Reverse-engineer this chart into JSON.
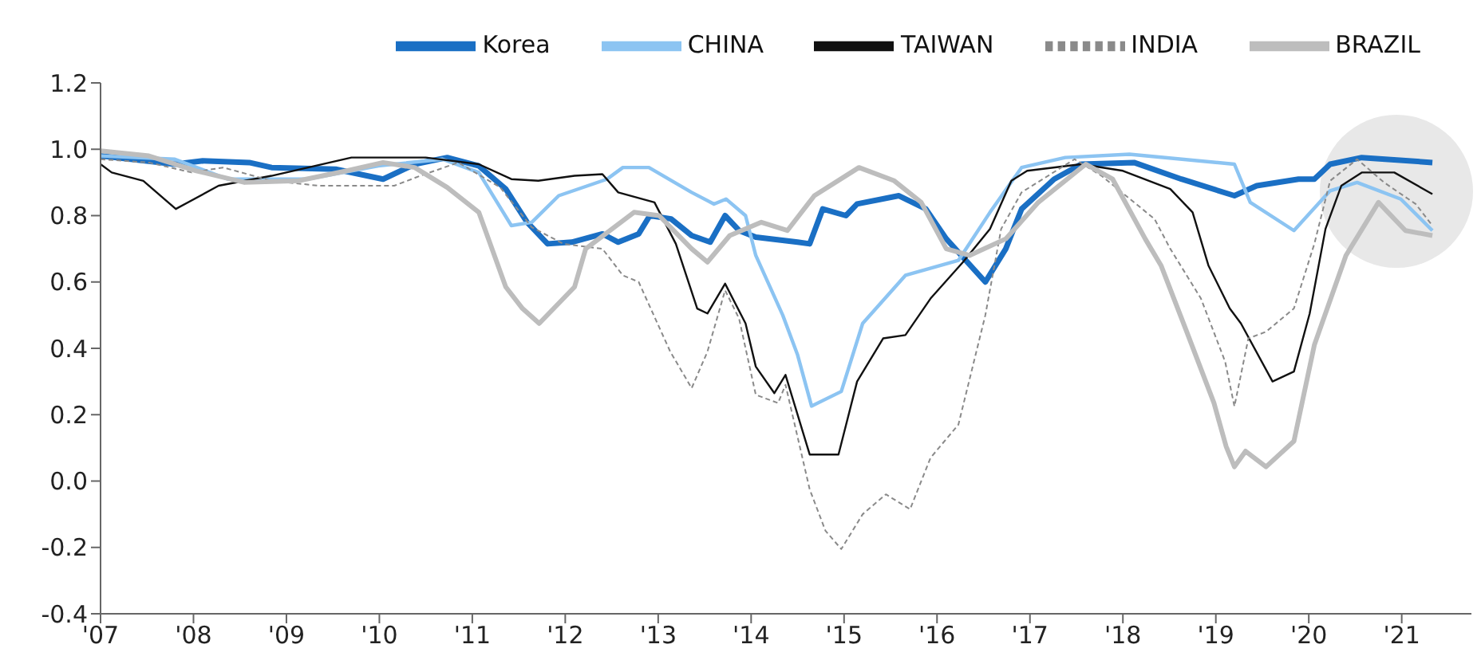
{
  "chart_data": {
    "type": "line",
    "legend": "top",
    "xlim": [
      2007,
      2021.75
    ],
    "xticks": [
      {
        "value": 2007,
        "label": "'07"
      },
      {
        "value": 2008,
        "label": "'08"
      },
      {
        "value": 2009,
        "label": "'09"
      },
      {
        "value": 2010,
        "label": "'10"
      },
      {
        "value": 2011,
        "label": "'11"
      },
      {
        "value": 2012,
        "label": "'12"
      },
      {
        "value": 2013,
        "label": "'13"
      },
      {
        "value": 2014,
        "label": "'14"
      },
      {
        "value": 2015,
        "label": "'15"
      },
      {
        "value": 2016,
        "label": "'16"
      },
      {
        "value": 2017,
        "label": "'17"
      },
      {
        "value": 2018,
        "label": "'18"
      },
      {
        "value": 2019,
        "label": "'19"
      },
      {
        "value": 2020,
        "label": "'20"
      },
      {
        "value": 2021,
        "label": "'21"
      }
    ],
    "ylim": [
      -0.4,
      1.2
    ],
    "yticks": [
      {
        "value": -0.4,
        "label": "-0.4"
      },
      {
        "value": -0.2,
        "label": "-0.2"
      },
      {
        "value": 0,
        "label": "0.0"
      },
      {
        "value": 0.2,
        "label": "0.2"
      },
      {
        "value": 0.4,
        "label": "0.4"
      },
      {
        "value": 0.6,
        "label": "0.6"
      },
      {
        "value": 0.8,
        "label": "0.8"
      },
      {
        "value": 1,
        "label": "1.0"
      },
      {
        "value": 1.2,
        "label": "1.2"
      }
    ],
    "series": [
      {
        "name": "Korea",
        "color": "#1a6fc4",
        "x": [
          2007,
          2007.8,
          2008.1,
          2008.6,
          2008.84,
          2009.53,
          2010.04,
          2010.38,
          2010.73,
          2011.07,
          2011.36,
          2011.59,
          2011.81,
          2012.07,
          2012.4,
          2012.57,
          2012.79,
          2012.91,
          2013.14,
          2013.36,
          2013.56,
          2013.72,
          2013.87,
          2014.05,
          2014.5,
          2014.63,
          2014.77,
          2015.02,
          2015.14,
          2015.59,
          2015.88,
          2016.1,
          2016.52,
          2016.74,
          2016.91,
          2017.26,
          2017.55,
          2018.12,
          2018.63,
          2019.2,
          2019.44,
          2019.89,
          2020.06,
          2020.23,
          2020.57,
          2021.33
        ],
        "values": [
          0.98,
          0.955,
          0.965,
          0.96,
          0.945,
          0.94,
          0.91,
          0.955,
          0.975,
          0.95,
          0.88,
          0.78,
          0.715,
          0.72,
          0.745,
          0.72,
          0.745,
          0.8,
          0.79,
          0.74,
          0.72,
          0.8,
          0.755,
          0.735,
          0.72,
          0.715,
          0.82,
          0.8,
          0.835,
          0.86,
          0.82,
          0.73,
          0.6,
          0.7,
          0.82,
          0.91,
          0.955,
          0.96,
          0.91,
          0.86,
          0.89,
          0.91,
          0.91,
          0.955,
          0.975,
          0.96
        ]
      },
      {
        "name": "CHINA",
        "color": "#8cc4f2",
        "x": [
          2007,
          2007.8,
          2008.37,
          2009.23,
          2009.99,
          2010.68,
          2011.07,
          2011.42,
          2011.64,
          2011.93,
          2012.45,
          2012.62,
          2012.9,
          2013.36,
          2013.6,
          2013.73,
          2013.94,
          2014.05,
          2014.34,
          2014.5,
          2014.65,
          2014.97,
          2015.2,
          2015.66,
          2016.23,
          2016.57,
          2016.91,
          2017.38,
          2018.07,
          2019.2,
          2019.37,
          2019.84,
          2020.23,
          2020.52,
          2020.99,
          2021.33
        ],
        "values": [
          0.98,
          0.97,
          0.91,
          0.91,
          0.95,
          0.97,
          0.93,
          0.77,
          0.78,
          0.86,
          0.91,
          0.945,
          0.945,
          0.87,
          0.835,
          0.85,
          0.8,
          0.68,
          0.5,
          0.38,
          0.226,
          0.27,
          0.475,
          0.62,
          0.665,
          0.81,
          0.945,
          0.975,
          0.985,
          0.955,
          0.84,
          0.755,
          0.875,
          0.9,
          0.85,
          0.755
        ]
      },
      {
        "name": "TAIWAN",
        "color": "#111111",
        "x": [
          2007,
          2007.12,
          2007.46,
          2007.81,
          2008.27,
          2008.84,
          2009.7,
          2010.5,
          2011.07,
          2011.42,
          2011.71,
          2012.1,
          2012.4,
          2012.57,
          2012.96,
          2013.19,
          2013.42,
          2013.53,
          2013.72,
          2013.94,
          2014.05,
          2014.25,
          2014.37,
          2014.63,
          2014.94,
          2015.14,
          2015.42,
          2015.66,
          2015.93,
          2016.28,
          2016.57,
          2016.8,
          2016.97,
          2017.55,
          2018.0,
          2018.51,
          2018.75,
          2018.92,
          2019.15,
          2019.27,
          2019.61,
          2019.84,
          2020.01,
          2020.18,
          2020.35,
          2020.57,
          2020.92,
          2021.33
        ],
        "values": [
          0.955,
          0.93,
          0.905,
          0.82,
          0.89,
          0.92,
          0.975,
          0.975,
          0.955,
          0.91,
          0.905,
          0.92,
          0.925,
          0.87,
          0.84,
          0.715,
          0.52,
          0.505,
          0.595,
          0.475,
          0.345,
          0.265,
          0.32,
          0.08,
          0.08,
          0.3,
          0.43,
          0.44,
          0.55,
          0.66,
          0.76,
          0.905,
          0.935,
          0.955,
          0.935,
          0.88,
          0.81,
          0.65,
          0.52,
          0.475,
          0.3,
          0.33,
          0.505,
          0.76,
          0.89,
          0.93,
          0.93,
          0.865
        ]
      },
      {
        "name": "INDIA",
        "color": "#8a8a8a",
        "line_style": "dashed",
        "x": [
          2007,
          2007.52,
          2007.98,
          2008.32,
          2008.84,
          2009.35,
          2010.16,
          2010.44,
          2010.85,
          2011.3,
          2011.64,
          2011.98,
          2012.4,
          2012.62,
          2012.79,
          2013.13,
          2013.36,
          2013.53,
          2013.72,
          2013.87,
          2014.05,
          2014.29,
          2014.37,
          2014.63,
          2014.8,
          2014.97,
          2015.2,
          2015.45,
          2015.71,
          2015.93,
          2016.23,
          2016.52,
          2016.69,
          2016.91,
          2017.48,
          2017.77,
          2018.34,
          2018.51,
          2018.84,
          2019.1,
          2019.2,
          2019.35,
          2019.54,
          2019.84,
          2020.06,
          2020.23,
          2020.52,
          2020.81,
          2021.15,
          2021.33
        ],
        "values": [
          0.97,
          0.96,
          0.93,
          0.945,
          0.905,
          0.89,
          0.89,
          0.92,
          0.96,
          0.885,
          0.765,
          0.715,
          0.7,
          0.62,
          0.6,
          0.39,
          0.28,
          0.39,
          0.575,
          0.49,
          0.26,
          0.235,
          0.29,
          -0.025,
          -0.15,
          -0.205,
          -0.1,
          -0.04,
          -0.085,
          0.07,
          0.17,
          0.5,
          0.76,
          0.87,
          0.97,
          0.92,
          0.79,
          0.7,
          0.55,
          0.36,
          0.225,
          0.43,
          0.45,
          0.52,
          0.715,
          0.905,
          0.97,
          0.9,
          0.835,
          0.77
        ]
      },
      {
        "name": "BRAZIL",
        "color": "#bdbdbd",
        "x": [
          2007,
          2007.52,
          2008.03,
          2008.55,
          2009.13,
          2009.65,
          2010.04,
          2010.38,
          2010.73,
          2011.07,
          2011.36,
          2011.54,
          2011.72,
          2012.1,
          2012.22,
          2012.74,
          2013.01,
          2013.36,
          2013.53,
          2013.77,
          2014.11,
          2014.39,
          2014.68,
          2015.16,
          2015.54,
          2015.83,
          2016.1,
          2016.35,
          2016.74,
          2017.09,
          2017.6,
          2017.89,
          2018.24,
          2018.41,
          2018.68,
          2018.98,
          2019.11,
          2019.2,
          2019.32,
          2019.54,
          2019.84,
          2020.06,
          2020.4,
          2020.75,
          2021.04,
          2021.33
        ],
        "values": [
          0.995,
          0.98,
          0.935,
          0.9,
          0.905,
          0.935,
          0.96,
          0.945,
          0.885,
          0.81,
          0.585,
          0.52,
          0.475,
          0.585,
          0.7,
          0.81,
          0.8,
          0.7,
          0.66,
          0.74,
          0.78,
          0.755,
          0.86,
          0.945,
          0.905,
          0.84,
          0.7,
          0.68,
          0.73,
          0.84,
          0.955,
          0.91,
          0.73,
          0.65,
          0.455,
          0.235,
          0.105,
          0.043,
          0.09,
          0.043,
          0.12,
          0.41,
          0.68,
          0.84,
          0.755,
          0.74
        ]
      }
    ]
  }
}
